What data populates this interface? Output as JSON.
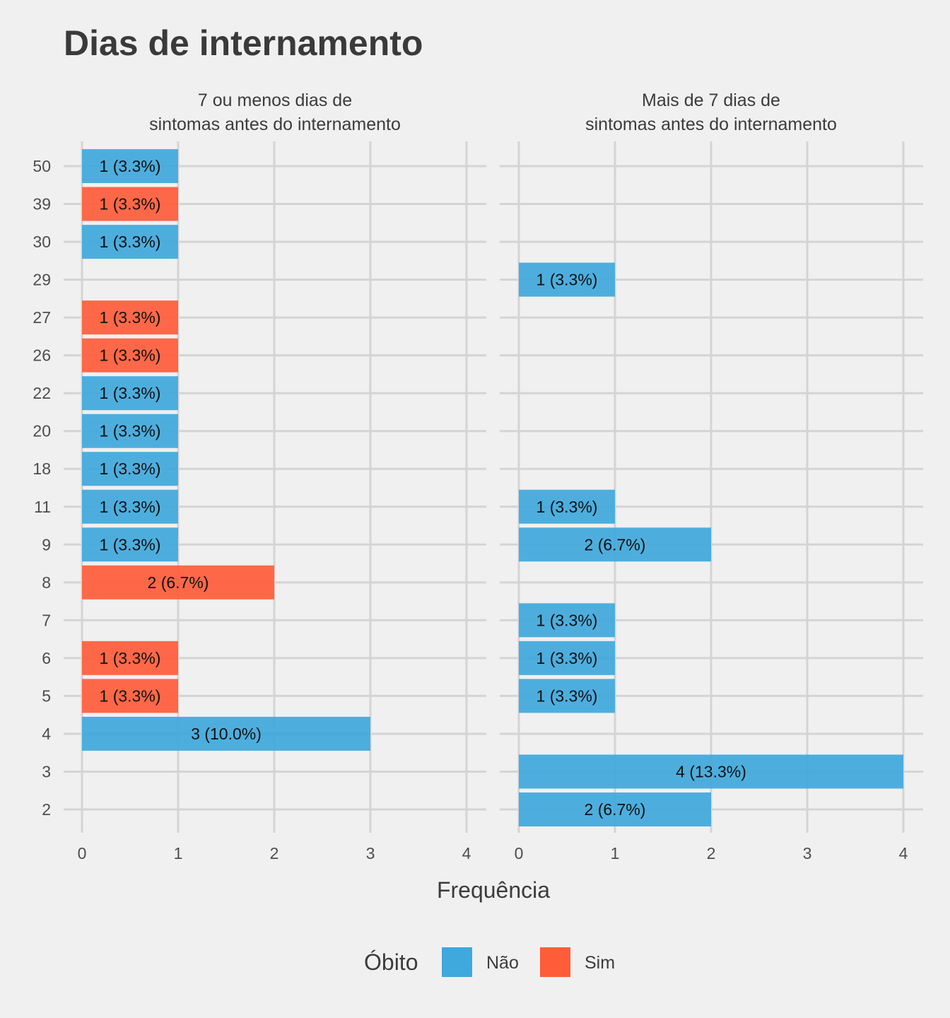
{
  "chart_data": {
    "type": "bar",
    "orientation": "horizontal",
    "title": "Dias de internamento",
    "xlabel": "Frequência",
    "ylabel": "",
    "xlim": [
      0,
      4
    ],
    "x_ticks": [
      "0",
      "1",
      "2",
      "3",
      "4"
    ],
    "categories": [
      "2",
      "3",
      "4",
      "5",
      "6",
      "7",
      "8",
      "9",
      "11",
      "18",
      "20",
      "22",
      "26",
      "27",
      "29",
      "30",
      "39",
      "50"
    ],
    "grid": true,
    "legend": {
      "title": "Óbito",
      "position": "bottom",
      "entries": [
        {
          "name": "Não",
          "color": "#3fa8dc"
        },
        {
          "name": "Sim",
          "color": "#ff5c3a"
        }
      ]
    },
    "panels": [
      {
        "title_lines": [
          "7 ou menos dias de",
          "sintomas antes do internamento"
        ],
        "bars": [
          {
            "category": "50",
            "value": 1,
            "group": "Não",
            "label": "1 (3.3%)"
          },
          {
            "category": "39",
            "value": 1,
            "group": "Sim",
            "label": "1 (3.3%)"
          },
          {
            "category": "30",
            "value": 1,
            "group": "Não",
            "label": "1 (3.3%)"
          },
          {
            "category": "27",
            "value": 1,
            "group": "Sim",
            "label": "1 (3.3%)"
          },
          {
            "category": "26",
            "value": 1,
            "group": "Sim",
            "label": "1 (3.3%)"
          },
          {
            "category": "22",
            "value": 1,
            "group": "Não",
            "label": "1 (3.3%)"
          },
          {
            "category": "20",
            "value": 1,
            "group": "Não",
            "label": "1 (3.3%)"
          },
          {
            "category": "18",
            "value": 1,
            "group": "Não",
            "label": "1 (3.3%)"
          },
          {
            "category": "11",
            "value": 1,
            "group": "Não",
            "label": "1 (3.3%)"
          },
          {
            "category": "9",
            "value": 1,
            "group": "Não",
            "label": "1 (3.3%)"
          },
          {
            "category": "8",
            "value": 2,
            "group": "Sim",
            "label": "2 (6.7%)"
          },
          {
            "category": "6",
            "value": 1,
            "group": "Sim",
            "label": "1 (3.3%)"
          },
          {
            "category": "5",
            "value": 1,
            "group": "Sim",
            "label": "1 (3.3%)"
          },
          {
            "category": "4",
            "value": 3,
            "group": "Não",
            "label": "3 (10.0%)"
          }
        ]
      },
      {
        "title_lines": [
          "Mais de 7 dias de",
          "sintomas antes do internamento"
        ],
        "bars": [
          {
            "category": "29",
            "value": 1,
            "group": "Não",
            "label": "1 (3.3%)"
          },
          {
            "category": "11",
            "value": 1,
            "group": "Não",
            "label": "1 (3.3%)"
          },
          {
            "category": "9",
            "value": 2,
            "group": "Não",
            "label": "2 (6.7%)"
          },
          {
            "category": "7",
            "value": 1,
            "group": "Não",
            "label": "1 (3.3%)"
          },
          {
            "category": "6",
            "value": 1,
            "group": "Não",
            "label": "1 (3.3%)"
          },
          {
            "category": "5",
            "value": 1,
            "group": "Não",
            "label": "1 (3.3%)"
          },
          {
            "category": "3",
            "value": 4,
            "group": "Não",
            "label": "4 (13.3%)"
          },
          {
            "category": "2",
            "value": 2,
            "group": "Não",
            "label": "2 (6.7%)"
          }
        ]
      }
    ]
  }
}
